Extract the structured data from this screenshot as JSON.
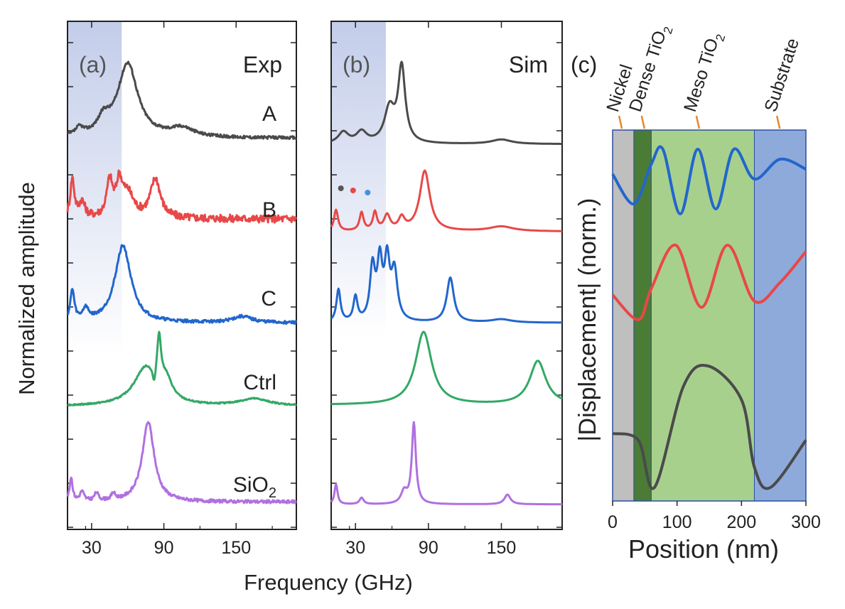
{
  "figure": {
    "y_axis_label": "Normalized amplitude",
    "x_axis_label": "Frequency (GHz)",
    "panel_c_y_label": "|Displacement| (norm.)",
    "panel_c_x_label": "Position (nm)"
  },
  "colors": {
    "A": "#4a4a4a",
    "B": "#e84848",
    "C": "#2266cc",
    "Ctrl": "#33a866",
    "SiO2": "#b070e0",
    "nickel": "#bfbfbf",
    "dense": "#4a7c36",
    "meso": "#a8d08d",
    "substrate": "#8eaadb",
    "layer_marker": "#e08a30",
    "shade": "#b8c4e6"
  },
  "chart_data": [
    {
      "type": "line",
      "panel": "(a)",
      "title": "Exp",
      "xlabel": "Frequency (GHz)",
      "ylabel": "Normalized amplitude",
      "xlim": [
        10,
        200
      ],
      "xticks": [
        30,
        90,
        150
      ],
      "shaded_region": [
        10,
        55
      ],
      "series": [
        {
          "name": "A",
          "peaks": [
            [
              60,
              1.0,
              10
            ],
            [
              20,
              0.1,
              4
            ],
            [
              40,
              0.2,
              6
            ],
            [
              105,
              0.12,
              12
            ]
          ],
          "baseline": 0.1,
          "noise": 0.02
        },
        {
          "name": "B",
          "peaks": [
            [
              14,
              0.5,
              2
            ],
            [
              45,
              0.45,
              3
            ],
            [
              53,
              0.4,
              3
            ],
            [
              83,
              0.5,
              5
            ],
            [
              22,
              0.2,
              3
            ],
            [
              60,
              0.3,
              6
            ]
          ],
          "baseline": 0.2,
          "noise": 0.05
        },
        {
          "name": "C",
          "peaks": [
            [
              56,
              1.0,
              8
            ],
            [
              14,
              0.4,
              2
            ],
            [
              25,
              0.15,
              3
            ],
            [
              155,
              0.08,
              10
            ]
          ],
          "baseline": 0.05,
          "noise": 0.02
        },
        {
          "name": "Ctrl",
          "peaks": [
            [
              75,
              0.8,
              12
            ],
            [
              86,
              1.0,
              2
            ],
            [
              82,
              -0.35,
              1.5
            ],
            [
              92,
              0.4,
              6
            ],
            [
              165,
              0.15,
              15
            ]
          ],
          "baseline": 0.05,
          "noise": 0.015
        },
        {
          "name": "SiO2",
          "label_main": "SiO",
          "label_sub": "2",
          "peaks": [
            [
              77,
              1.0,
              6
            ],
            [
              13,
              0.3,
              1.5
            ],
            [
              22,
              0.12,
              2
            ],
            [
              34,
              0.1,
              2
            ],
            [
              48,
              0.08,
              2
            ]
          ],
          "baseline": 0.05,
          "noise": 0.02
        }
      ]
    },
    {
      "type": "line",
      "panel": "(b)",
      "title": "Sim",
      "xlabel": "Frequency (GHz)",
      "xlim": [
        10,
        200
      ],
      "xticks": [
        30,
        90,
        150
      ],
      "shaded_region": [
        10,
        55
      ],
      "series": [
        {
          "name": "A",
          "peaks": [
            [
              68,
              1.0,
              3.5
            ],
            [
              58,
              0.45,
              5
            ],
            [
              20,
              0.15,
              5
            ],
            [
              35,
              0.15,
              5
            ],
            [
              150,
              0.06,
              10
            ]
          ],
          "baseline": 0.02,
          "noise": 0.0
        },
        {
          "name": "B",
          "peaks": [
            [
              87,
              1.0,
              5
            ],
            [
              14,
              0.35,
              2
            ],
            [
              35,
              0.3,
              2
            ],
            [
              46,
              0.3,
              2
            ],
            [
              56,
              0.25,
              3
            ],
            [
              68,
              0.2,
              3
            ],
            [
              150,
              0.08,
              12
            ]
          ],
          "baseline": 0.05,
          "noise": 0.0
        },
        {
          "name": "C",
          "peaks": [
            [
              44,
              0.65,
              2.5
            ],
            [
              50,
              0.7,
              2.5
            ],
            [
              56,
              0.7,
              2.5
            ],
            [
              62,
              0.6,
              3
            ],
            [
              30,
              0.3,
              2
            ],
            [
              16,
              0.4,
              2
            ],
            [
              108,
              0.55,
              3.5
            ],
            [
              150,
              0.04,
              10
            ]
          ],
          "baseline": 0.05,
          "noise": 0.0
        },
        {
          "name": "Ctrl",
          "peaks": [
            [
              86,
              1.0,
              8
            ],
            [
              180,
              0.6,
              8
            ]
          ],
          "baseline": 0.05,
          "noise": 0.0
        },
        {
          "name": "SiO2",
          "peaks": [
            [
              78,
              1.0,
              2
            ],
            [
              14,
              0.25,
              1.5
            ],
            [
              35,
              0.08,
              2
            ],
            [
              70,
              0.15,
              3
            ],
            [
              155,
              0.12,
              3
            ]
          ],
          "baseline": 0.02,
          "noise": 0.0
        }
      ],
      "markers": [
        [
          18,
          0.35,
          "#555555"
        ],
        [
          28,
          0.28,
          "#e84848"
        ],
        [
          40,
          0.3,
          "#4a90d9"
        ]
      ]
    },
    {
      "type": "line",
      "panel": "(c)",
      "xlabel": "Position (nm)",
      "ylabel": "|Displacement| (norm.)",
      "xlim": [
        0,
        300
      ],
      "xticks": [
        0,
        100,
        200,
        300
      ],
      "layers": [
        {
          "name": "Nickel",
          "from": 0,
          "to": 33
        },
        {
          "name": "Dense TiO",
          "sub": "2",
          "from": 33,
          "to": 60
        },
        {
          "name": "Meso TiO",
          "sub": "2",
          "from": 60,
          "to": 220
        },
        {
          "name": "Substrate",
          "from": 220,
          "to": 300
        }
      ],
      "series": [
        {
          "name": "blue",
          "points": [
            [
              0,
              0.75
            ],
            [
              33,
              0.45
            ],
            [
              60,
              0.85
            ],
            [
              78,
              1.0
            ],
            [
              105,
              0.35
            ],
            [
              132,
              1.0
            ],
            [
              160,
              0.4
            ],
            [
              188,
              1.0
            ],
            [
              220,
              0.7
            ],
            [
              260,
              0.9
            ],
            [
              300,
              0.8
            ]
          ]
        },
        {
          "name": "red",
          "points": [
            [
              0,
              0.6
            ],
            [
              40,
              0.4
            ],
            [
              60,
              0.65
            ],
            [
              98,
              1.0
            ],
            [
              138,
              0.5
            ],
            [
              178,
              1.0
            ],
            [
              220,
              0.55
            ],
            [
              260,
              0.7
            ],
            [
              300,
              0.95
            ]
          ]
        },
        {
          "name": "black",
          "points": [
            [
              0,
              0.5
            ],
            [
              40,
              0.45
            ],
            [
              65,
              0.1
            ],
            [
              110,
              0.85
            ],
            [
              148,
              1.0
            ],
            [
              200,
              0.75
            ],
            [
              220,
              0.25
            ],
            [
              245,
              0.1
            ],
            [
              300,
              0.45
            ]
          ]
        }
      ]
    }
  ]
}
